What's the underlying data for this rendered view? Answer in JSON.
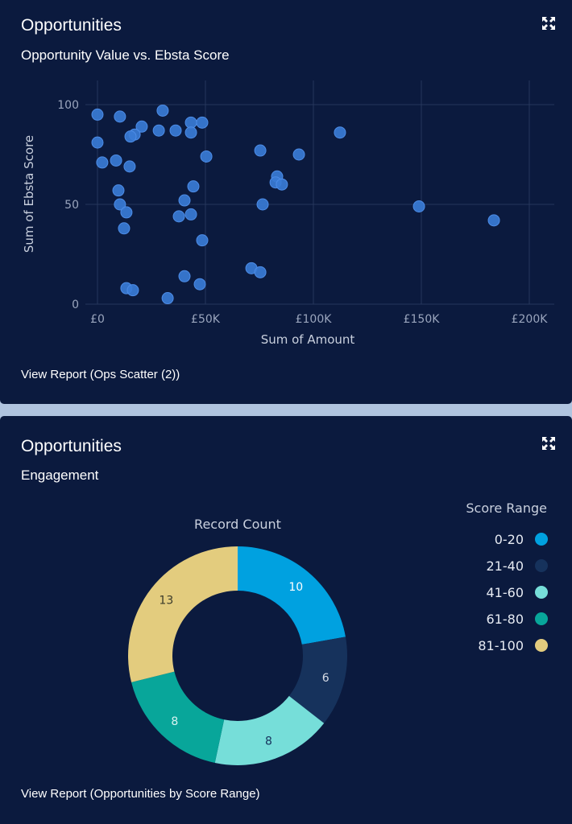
{
  "panels": [
    {
      "title": "Opportunities",
      "subtitle": "Opportunity Value vs. Ebsta Score",
      "expand_icon": "expand-arrows-icon",
      "view_report_link": "View Report (Ops Scatter (2))"
    },
    {
      "title": "Opportunities",
      "subtitle": "Engagement",
      "expand_icon": "expand-arrows-icon",
      "view_report_link": "View Report (Opportunities by Score Range)"
    }
  ],
  "chart_data": [
    {
      "type": "scatter",
      "title": "Opportunity Value vs. Ebsta Score",
      "xlabel": "Sum of Amount",
      "ylabel": "Sum of Ebsta Score",
      "xlim": [
        -5000,
        212000
      ],
      "ylim": [
        0,
        105
      ],
      "x_ticks": [
        0,
        50000,
        100000,
        150000,
        200000
      ],
      "x_tick_labels": [
        "£0",
        "£50K",
        "£100K",
        "£150K",
        "£200K"
      ],
      "y_ticks": [
        0,
        50,
        100
      ],
      "y_tick_labels": [
        "0",
        "50",
        "100"
      ],
      "grid": true,
      "point_color": "#3a7bd5",
      "points": [
        {
          "x": 0,
          "y": 95
        },
        {
          "x": 10400,
          "y": 94
        },
        {
          "x": 30200,
          "y": 97
        },
        {
          "x": 20500,
          "y": 89
        },
        {
          "x": 17200,
          "y": 85
        },
        {
          "x": 15300,
          "y": 84
        },
        {
          "x": 28400,
          "y": 87
        },
        {
          "x": 36200,
          "y": 87
        },
        {
          "x": 43300,
          "y": 91
        },
        {
          "x": 48500,
          "y": 91
        },
        {
          "x": 43300,
          "y": 86
        },
        {
          "x": 0,
          "y": 81
        },
        {
          "x": 2200,
          "y": 71
        },
        {
          "x": 8600,
          "y": 72
        },
        {
          "x": 14900,
          "y": 69
        },
        {
          "x": 50400,
          "y": 74
        },
        {
          "x": 9700,
          "y": 57
        },
        {
          "x": 10400,
          "y": 50
        },
        {
          "x": 13400,
          "y": 46
        },
        {
          "x": 12300,
          "y": 38
        },
        {
          "x": 44400,
          "y": 59
        },
        {
          "x": 40300,
          "y": 52
        },
        {
          "x": 37700,
          "y": 44
        },
        {
          "x": 43300,
          "y": 45
        },
        {
          "x": 48500,
          "y": 32
        },
        {
          "x": 40300,
          "y": 14
        },
        {
          "x": 47400,
          "y": 10
        },
        {
          "x": 13400,
          "y": 8
        },
        {
          "x": 16400,
          "y": 7
        },
        {
          "x": 32500,
          "y": 3
        },
        {
          "x": 112300,
          "y": 86
        },
        {
          "x": 75400,
          "y": 77
        },
        {
          "x": 93300,
          "y": 75
        },
        {
          "x": 83200,
          "y": 64
        },
        {
          "x": 82500,
          "y": 61
        },
        {
          "x": 85400,
          "y": 60
        },
        {
          "x": 76500,
          "y": 50
        },
        {
          "x": 71300,
          "y": 18
        },
        {
          "x": 75400,
          "y": 16
        },
        {
          "x": 148900,
          "y": 49
        },
        {
          "x": 183600,
          "y": 42
        }
      ]
    },
    {
      "type": "pie",
      "variant": "donut",
      "title": "Record Count",
      "legend_title": "Score Range",
      "legend_position": "right",
      "categories": [
        "0-20",
        "21-40",
        "41-60",
        "61-80",
        "81-100"
      ],
      "values": [
        10,
        6,
        8,
        8,
        13
      ],
      "colors": [
        "#00a1e0",
        "#16325c",
        "#76ded9",
        "#08a69a",
        "#e3cc7e"
      ],
      "label_colors": [
        "#ffffff",
        "#d8dde6",
        "#16325c",
        "#d8f3f1",
        "#3a3a2a"
      ]
    }
  ]
}
